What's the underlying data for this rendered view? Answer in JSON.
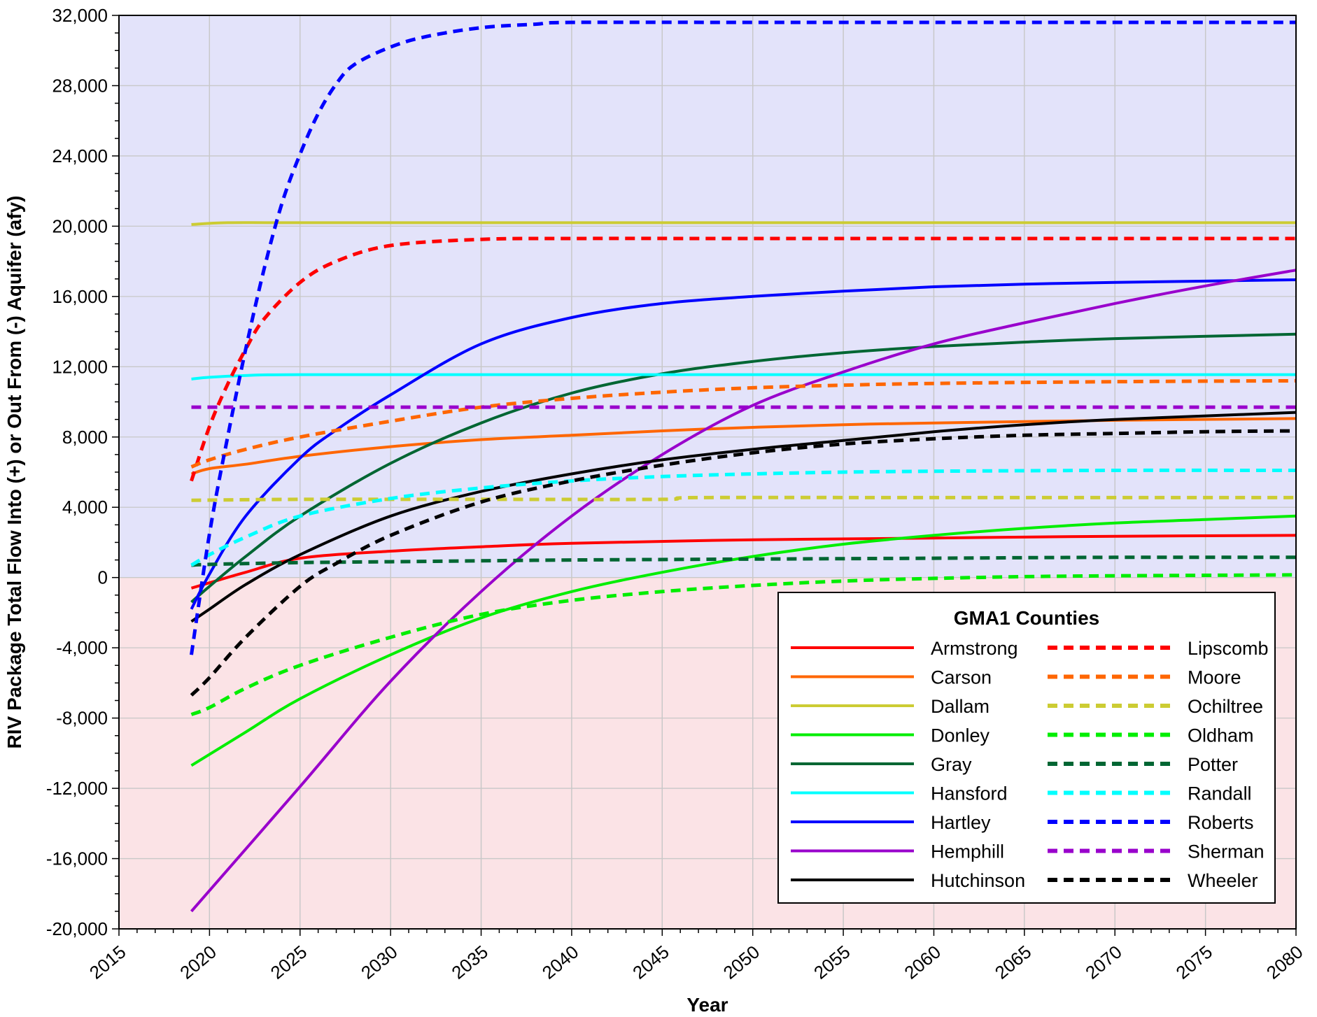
{
  "chart_data": {
    "type": "line",
    "title": "",
    "xlabel": "Year",
    "ylabel": "RIV Package Total Flow Into (+) or Out From (-) Aquifer  (afy)",
    "xlim": [
      2015,
      2080
    ],
    "ylim": [
      -20000,
      32000
    ],
    "x_ticks": [
      2015,
      2020,
      2025,
      2030,
      2035,
      2040,
      2045,
      2050,
      2055,
      2060,
      2065,
      2070,
      2075,
      2080
    ],
    "y_ticks": [
      -20000,
      -16000,
      -12000,
      -8000,
      -4000,
      0,
      4000,
      8000,
      12000,
      16000,
      20000,
      24000,
      28000,
      32000
    ],
    "y_tick_labels": [
      "-20,000",
      "-16,000",
      "-12,000",
      "-8,000",
      "-4,000",
      "0",
      "4,000",
      "8,000",
      "12,000",
      "16,000",
      "20,000",
      "24,000",
      "28,000",
      "32,000"
    ],
    "grid": true,
    "regions": [
      {
        "from": 0,
        "to": 32000,
        "color": "#e3e3fa"
      },
      {
        "from": -20000,
        "to": 0,
        "color": "#fbe3e6"
      }
    ],
    "legend": {
      "title": "GMA1 Counties",
      "placement": "bottom-right",
      "columns": 2
    },
    "series": [
      {
        "name": "Armstrong",
        "color": "#ff0000",
        "style": "solid",
        "x": [
          2019,
          2020,
          2022,
          2025,
          2030,
          2035,
          2040,
          2050,
          2060,
          2070,
          2080
        ],
        "y": [
          -600,
          -300,
          300,
          1100,
          1500,
          1750,
          1950,
          2150,
          2250,
          2350,
          2400
        ]
      },
      {
        "name": "Carson",
        "color": "#ff6600",
        "style": "solid",
        "x": [
          2019,
          2020,
          2022,
          2025,
          2030,
          2035,
          2040,
          2045,
          2050,
          2055,
          2060,
          2070,
          2080
        ],
        "y": [
          5900,
          6200,
          6450,
          6900,
          7450,
          7850,
          8100,
          8350,
          8550,
          8700,
          8800,
          8950,
          9050
        ]
      },
      {
        "name": "Dallam",
        "color": "#cccc33",
        "style": "solid",
        "x": [
          2019,
          2021,
          2025,
          2040,
          2060,
          2080
        ],
        "y": [
          20100,
          20200,
          20200,
          20200,
          20200,
          20200
        ]
      },
      {
        "name": "Donley",
        "color": "#00ee00",
        "style": "solid",
        "x": [
          2019,
          2022,
          2025,
          2030,
          2035,
          2040,
          2045,
          2050,
          2055,
          2060,
          2065,
          2070,
          2075,
          2080
        ],
        "y": [
          -10700,
          -8800,
          -6900,
          -4400,
          -2300,
          -800,
          300,
          1200,
          1900,
          2400,
          2800,
          3100,
          3300,
          3500
        ]
      },
      {
        "name": "Gray",
        "color": "#006633",
        "style": "solid",
        "x": [
          2019,
          2020,
          2022,
          2025,
          2030,
          2035,
          2040,
          2045,
          2050,
          2055,
          2060,
          2065,
          2070,
          2080
        ],
        "y": [
          -1400,
          -500,
          1200,
          3500,
          6500,
          8800,
          10500,
          11600,
          12300,
          12800,
          13150,
          13400,
          13600,
          13850
        ]
      },
      {
        "name": "Hansford",
        "color": "#00ffff",
        "style": "solid",
        "x": [
          2019,
          2020,
          2022,
          2025,
          2040,
          2060,
          2080
        ],
        "y": [
          11300,
          11400,
          11500,
          11550,
          11550,
          11550,
          11550
        ]
      },
      {
        "name": "Hartley",
        "color": "#0000ff",
        "style": "solid",
        "x": [
          2019,
          2020,
          2022,
          2025,
          2027,
          2030,
          2035,
          2040,
          2045,
          2050,
          2055,
          2060,
          2065,
          2070,
          2080
        ],
        "y": [
          -1800,
          200,
          3500,
          6800,
          8400,
          10400,
          13300,
          14800,
          15600,
          16000,
          16300,
          16550,
          16700,
          16800,
          16950
        ]
      },
      {
        "name": "Hemphill",
        "color": "#9900cc",
        "style": "solid",
        "x": [
          2019,
          2025,
          2030,
          2035,
          2040,
          2045,
          2050,
          2055,
          2060,
          2065,
          2070,
          2075,
          2080
        ],
        "y": [
          -19000,
          -11900,
          -5900,
          -800,
          3500,
          7000,
          9800,
          11700,
          13300,
          14500,
          15600,
          16600,
          17500
        ]
      },
      {
        "name": "Hutchinson",
        "color": "#000000",
        "style": "solid",
        "x": [
          2019,
          2020,
          2022,
          2025,
          2030,
          2035,
          2040,
          2045,
          2050,
          2055,
          2060,
          2065,
          2070,
          2075,
          2080
        ],
        "y": [
          -2500,
          -1800,
          -400,
          1300,
          3500,
          4900,
          5900,
          6700,
          7300,
          7800,
          8300,
          8700,
          9000,
          9200,
          9400
        ]
      },
      {
        "name": "Lipscomb",
        "color": "#ff0000",
        "style": "dashed",
        "x": [
          2019,
          2020,
          2021,
          2022,
          2023,
          2025,
          2027,
          2030,
          2035,
          2040,
          2050,
          2060,
          2080
        ],
        "y": [
          5500,
          8600,
          11000,
          13000,
          14700,
          16800,
          18000,
          18900,
          19250,
          19300,
          19300,
          19300,
          19300
        ]
      },
      {
        "name": "Moore",
        "color": "#ff6600",
        "style": "dashed",
        "x": [
          2019,
          2020,
          2022,
          2025,
          2030,
          2035,
          2040,
          2045,
          2050,
          2055,
          2060,
          2070,
          2080
        ],
        "y": [
          6300,
          6700,
          7300,
          8000,
          8900,
          9700,
          10200,
          10550,
          10800,
          10950,
          11050,
          11150,
          11200
        ]
      },
      {
        "name": "Ochiltree",
        "color": "#cccc33",
        "style": "dashed",
        "x": [
          2019,
          2025,
          2035,
          2045,
          2047,
          2060,
          2080
        ],
        "y": [
          4400,
          4450,
          4450,
          4450,
          4550,
          4550,
          4550
        ]
      },
      {
        "name": "Oldham",
        "color": "#00ee00",
        "style": "dashed",
        "x": [
          2019,
          2020,
          2022,
          2025,
          2030,
          2035,
          2040,
          2045,
          2050,
          2055,
          2060,
          2065,
          2070,
          2080
        ],
        "y": [
          -7800,
          -7400,
          -6300,
          -5000,
          -3400,
          -2100,
          -1300,
          -800,
          -450,
          -200,
          -50,
          50,
          100,
          150
        ]
      },
      {
        "name": "Potter",
        "color": "#006633",
        "style": "dashed",
        "x": [
          2019,
          2020,
          2025,
          2030,
          2035,
          2040,
          2050,
          2060,
          2070,
          2080
        ],
        "y": [
          700,
          750,
          850,
          900,
          950,
          1000,
          1050,
          1100,
          1150,
          1150
        ]
      },
      {
        "name": "Randall",
        "color": "#00ffff",
        "style": "dashed",
        "x": [
          2019,
          2020,
          2022,
          2025,
          2030,
          2035,
          2040,
          2045,
          2050,
          2055,
          2060,
          2070,
          2080
        ],
        "y": [
          700,
          1300,
          2300,
          3500,
          4500,
          5100,
          5500,
          5750,
          5900,
          6000,
          6050,
          6100,
          6100
        ]
      },
      {
        "name": "Roberts",
        "color": "#0000ff",
        "style": "dashed",
        "x": [
          2019,
          2020,
          2021,
          2022,
          2023,
          2024,
          2025,
          2026,
          2027,
          2028,
          2030,
          2032,
          2035,
          2038,
          2040,
          2050,
          2060,
          2080
        ],
        "y": [
          -4400,
          2500,
          8000,
          13000,
          17500,
          21300,
          24100,
          26400,
          28100,
          29200,
          30200,
          30800,
          31300,
          31500,
          31600,
          31600,
          31600,
          31600
        ]
      },
      {
        "name": "Sherman",
        "color": "#9900cc",
        "style": "dashed",
        "x": [
          2019,
          2030,
          2040,
          2050,
          2060,
          2070,
          2080
        ],
        "y": [
          9700,
          9700,
          9700,
          9700,
          9700,
          9700,
          9700
        ]
      },
      {
        "name": "Wheeler",
        "color": "#000000",
        "style": "dashed",
        "x": [
          2019,
          2020,
          2022,
          2025,
          2027,
          2030,
          2035,
          2040,
          2045,
          2050,
          2055,
          2060,
          2065,
          2070,
          2075,
          2080
        ],
        "y": [
          -6700,
          -5700,
          -3400,
          -500,
          800,
          2400,
          4300,
          5500,
          6400,
          7100,
          7600,
          7900,
          8100,
          8200,
          8300,
          8350
        ]
      }
    ]
  }
}
